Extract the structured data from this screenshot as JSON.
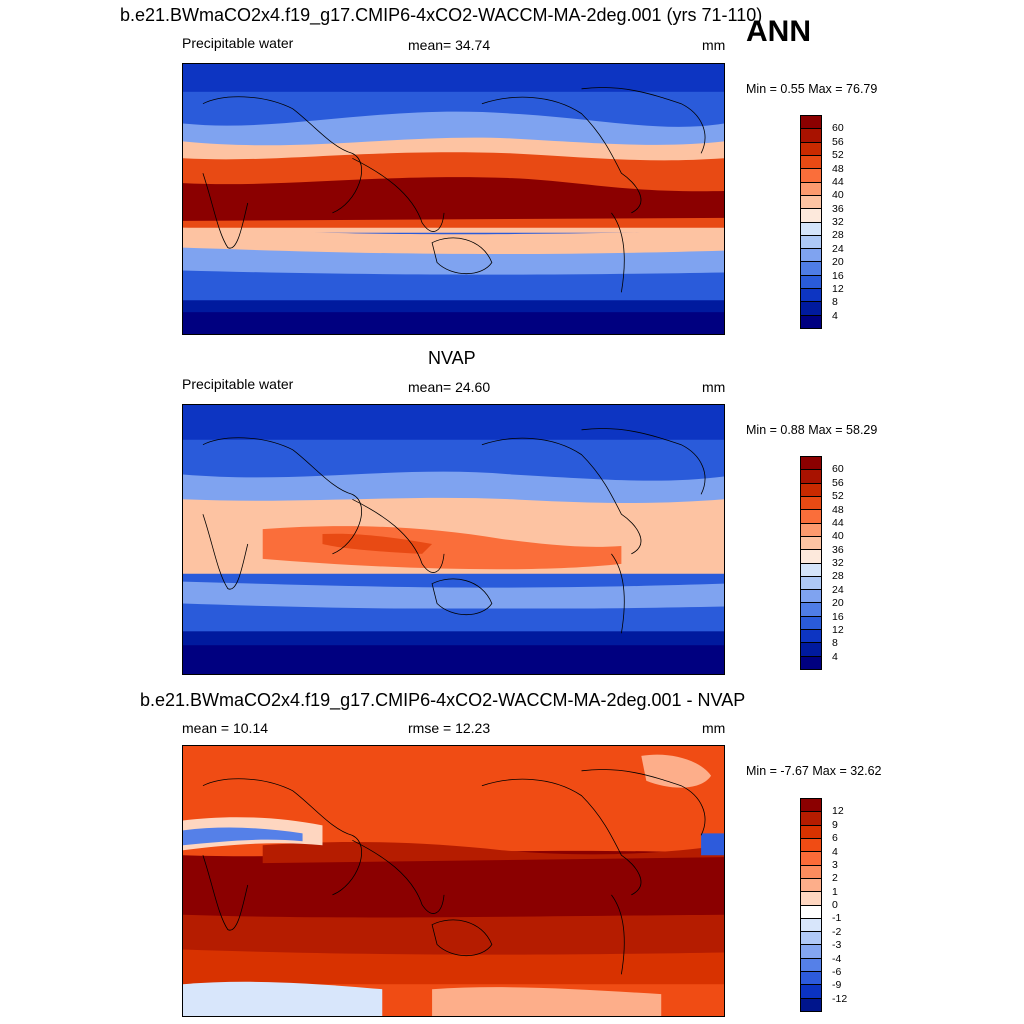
{
  "header": {
    "ann_label": "ANN"
  },
  "panels": [
    {
      "title": "b.e21.BWmaCO2x4.f19_g17.CMIP6-4xCO2-WACCM-MA-2deg.001 (yrs 71-110)",
      "left_label": "Precipitable water",
      "center_label": "mean=  34.74",
      "right_label": "mm",
      "minmax": "Min =   0.55 Max =  76.79",
      "levels": [
        "60",
        "56",
        "52",
        "48",
        "44",
        "40",
        "36",
        "32",
        "28",
        "24",
        "20",
        "16",
        "12",
        "8",
        "4"
      ],
      "colors": [
        "#8b0000",
        "#a81200",
        "#c92a00",
        "#e84a14",
        "#fa6e3a",
        "#fc9a6e",
        "#fdc3a2",
        "#fde9dc",
        "#d4e4fa",
        "#aec9f6",
        "#7fa3f0",
        "#4f7de6",
        "#2a5bda",
        "#0d35c2",
        "#001a9e",
        "#000080"
      ]
    },
    {
      "title": "NVAP",
      "left_label": "Precipitable water",
      "center_label": "mean=  24.60",
      "right_label": "mm",
      "minmax": "Min =   0.88 Max =  58.29",
      "levels": [
        "60",
        "56",
        "52",
        "48",
        "44",
        "40",
        "36",
        "32",
        "28",
        "24",
        "20",
        "16",
        "12",
        "8",
        "4"
      ],
      "colors": [
        "#8b0000",
        "#a81200",
        "#c92a00",
        "#e84a14",
        "#fa6e3a",
        "#fc9a6e",
        "#fdc3a2",
        "#fde9dc",
        "#d4e4fa",
        "#aec9f6",
        "#7fa3f0",
        "#4f7de6",
        "#2a5bda",
        "#0d35c2",
        "#001a9e",
        "#000080"
      ]
    },
    {
      "title": "b.e21.BWmaCO2x4.f19_g17.CMIP6-4xCO2-WACCM-MA-2deg.001 - NVAP",
      "left_label": "mean =  10.14",
      "center_label": "rmse =  12.23",
      "right_label": "mm",
      "minmax": "Min =  -7.67 Max =  32.62",
      "levels": [
        "12",
        "9",
        "6",
        "4",
        "3",
        "2",
        "1",
        "0",
        "-1",
        "-2",
        "-3",
        "-4",
        "-6",
        "-9",
        "-12"
      ],
      "colors": [
        "#8b0000",
        "#b51c00",
        "#d83200",
        "#f04c14",
        "#fb6b38",
        "#fc8c5e",
        "#fdae8a",
        "#fed6c0",
        "#ffffff",
        "#d8e6fb",
        "#b0c9f7",
        "#84a6f1",
        "#5580e8",
        "#2d5bdc",
        "#0b33c2",
        "#00158c"
      ]
    }
  ]
}
